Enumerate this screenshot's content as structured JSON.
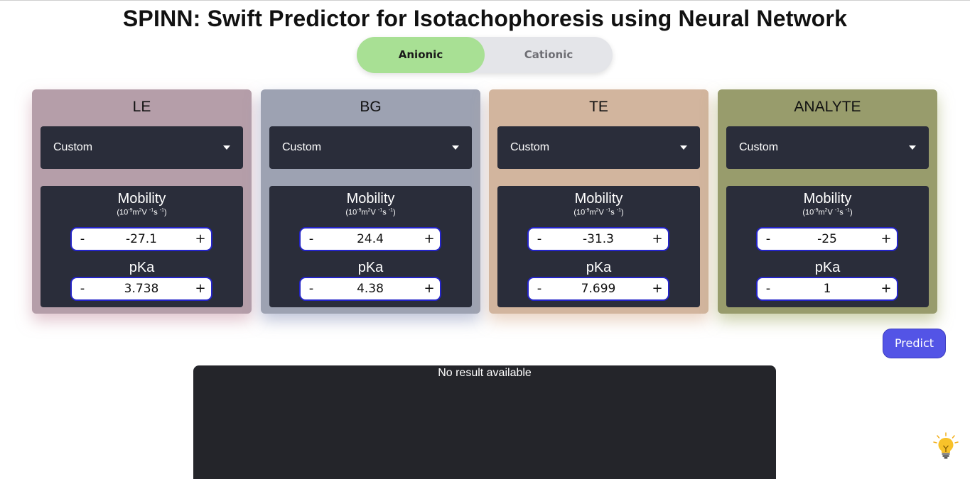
{
  "title": "SPINN: Swift Predictor for Isotachophoresis using Neural Network",
  "mode_toggle": {
    "active": "Anionic",
    "inactive": "Cationic"
  },
  "cards": [
    {
      "title": "LE",
      "bg": "#b59ea9",
      "shadow": "rgba(200,150,165,0.55)",
      "select": "Custom",
      "mobility_label": "Mobility",
      "mobility": "-27.1",
      "pka_label": "pKa",
      "pka": "3.738"
    },
    {
      "title": "BG",
      "bg": "#9da2b2",
      "shadow": "rgba(140,150,185,0.55)",
      "select": "Custom",
      "mobility_label": "Mobility",
      "mobility": "24.4",
      "pka_label": "pKa",
      "pka": "4.38"
    },
    {
      "title": "TE",
      "bg": "#d2b59e",
      "shadow": "rgba(215,175,145,0.55)",
      "select": "Custom",
      "mobility_label": "Mobility",
      "mobility": "-31.3",
      "pka_label": "pKa",
      "pka": "7.699"
    },
    {
      "title": "ANALYTE",
      "bg": "#989c6c",
      "shadow": "rgba(160,170,100,0.55)",
      "select": "Custom",
      "mobility_label": "Mobility",
      "mobility": "-25",
      "pka_label": "pKa",
      "pka": "1"
    }
  ],
  "mobility_unit": {
    "base": "(10",
    "exp1": "-9",
    "m": "m",
    "exp2": "2",
    "v": "V ",
    "exp3": "-1",
    "s": "s ",
    "exp4": "-1",
    "close": ")"
  },
  "stepper": {
    "minus": "-",
    "plus": "+"
  },
  "predict_label": "Predict",
  "result_message": "No result available",
  "icons": {
    "select_caret": "caret-down-icon",
    "help": "lightbulb-icon"
  },
  "colors": {
    "toggle_active": "#a8e094",
    "predict": "#5354e6",
    "panel": "#2a2d3a",
    "result_bg": "#24252a"
  }
}
